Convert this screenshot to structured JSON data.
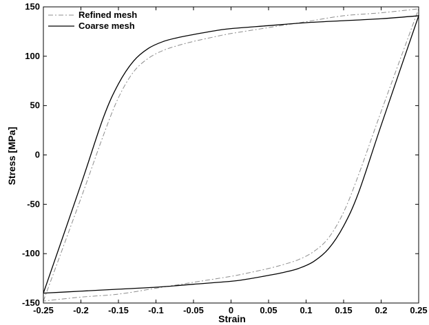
{
  "chart_data": {
    "type": "line",
    "title": "",
    "xlabel": "Strain",
    "ylabel": "Stress [MPa]",
    "xlim": [
      -0.25,
      0.25
    ],
    "ylim": [
      -150,
      150
    ],
    "grid": false,
    "legend_position": "top-left",
    "x_ticks": [
      -0.25,
      -0.2,
      -0.15,
      -0.1,
      -0.05,
      0,
      0.05,
      0.1,
      0.15,
      0.2,
      0.25
    ],
    "x_tick_labels": [
      "-0.25",
      "-0.2",
      "-0.15",
      "-0.1",
      "-0.05",
      "0",
      "0.05",
      "0.1",
      "0.15",
      "0.2",
      "0.25"
    ],
    "y_ticks": [
      -150,
      -100,
      -50,
      0,
      50,
      100,
      150
    ],
    "y_tick_labels": [
      "-150",
      "-100",
      "-50",
      "0",
      "50",
      "100",
      "150"
    ],
    "series": [
      {
        "name": "Refined mesh",
        "color": "#8c8c8c",
        "style": "dash-dot",
        "x": [
          -0.25,
          -0.2,
          -0.17,
          -0.15,
          -0.13,
          -0.11,
          -0.09,
          -0.07,
          -0.05,
          -0.02,
          0,
          0.05,
          0.1,
          0.15,
          0.2,
          0.25,
          0.2,
          0.17,
          0.15,
          0.13,
          0.11,
          0.09,
          0.07,
          0.05,
          0.02,
          0,
          -0.05,
          -0.1,
          -0.15,
          -0.2,
          -0.25
        ],
        "y": [
          -148,
          -44,
          20,
          58,
          84,
          98,
          106,
          111,
          115,
          120,
          123,
          129,
          135,
          141,
          144,
          148,
          44,
          -20,
          -58,
          -84,
          -98,
          -106,
          -111,
          -115,
          -120,
          -123,
          -129,
          -135,
          -141,
          -144,
          -148
        ]
      },
      {
        "name": "Coarse mesh",
        "color": "#000000",
        "style": "solid",
        "x": [
          -0.25,
          -0.2,
          -0.17,
          -0.15,
          -0.13,
          -0.11,
          -0.09,
          -0.07,
          -0.05,
          -0.02,
          0,
          0.05,
          0.1,
          0.15,
          0.2,
          0.25,
          0.2,
          0.17,
          0.15,
          0.13,
          0.11,
          0.09,
          0.07,
          0.05,
          0.02,
          0,
          -0.05,
          -0.1,
          -0.15,
          -0.2,
          -0.25
        ],
        "y": [
          -140,
          -30,
          38,
          72,
          95,
          108,
          115,
          119,
          122,
          126,
          128,
          131,
          134,
          136,
          138,
          141,
          30,
          -38,
          -72,
          -95,
          -108,
          -115,
          -119,
          -122,
          -126,
          -128,
          -131,
          -134,
          -136,
          -138,
          -140
        ]
      }
    ]
  }
}
